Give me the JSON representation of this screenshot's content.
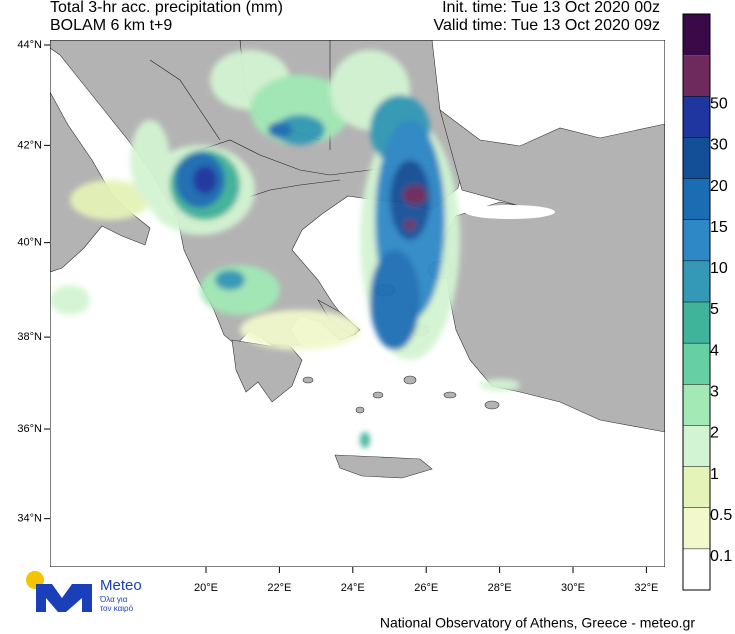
{
  "header": {
    "title": "Total 3-hr acc. precipitation (mm)",
    "model": "BOLAM 6 km t+9",
    "init_time": "Init. time: Tue 13 Oct 2020 00z",
    "valid_time": "Valid time: Tue 13 Oct 2020 09z"
  },
  "map": {
    "lon_ticks": [
      {
        "value": 20,
        "label": "20°E"
      },
      {
        "value": 22,
        "label": "22°E"
      },
      {
        "value": 24,
        "label": "24°E"
      },
      {
        "value": 26,
        "label": "26°E"
      },
      {
        "value": 28,
        "label": "28°E"
      },
      {
        "value": 30,
        "label": "30°E"
      },
      {
        "value": 32,
        "label": "32°E"
      }
    ],
    "lat_ticks": [
      {
        "value": 44,
        "label": "44°N"
      },
      {
        "value": 42,
        "label": "42°N"
      },
      {
        "value": 40,
        "label": "40°N"
      },
      {
        "value": 38,
        "label": "38°N"
      },
      {
        "value": 36,
        "label": "36°N"
      },
      {
        "value": 34,
        "label": "34°N"
      }
    ]
  },
  "colorbar": {
    "levels": [
      0.1,
      0.5,
      1,
      2,
      3,
      4,
      5,
      10,
      15,
      20,
      30,
      50
    ],
    "colors": [
      "#ffffff",
      "#f2f8cc",
      "#e4f3b8",
      "#d3f4d2",
      "#a2e9b6",
      "#66cfa4",
      "#3fb49b",
      "#3399b6",
      "#2e88c6",
      "#1a6db3",
      "#134f97",
      "#1f35a0",
      "#6e2a5c",
      "#3a0a48"
    ]
  },
  "logo": {
    "name": "Meteo",
    "slogan": [
      "Όλα για",
      "τον καιρό"
    ]
  },
  "footer": "National Observatory of Athens, Greece - meteo.gr"
}
